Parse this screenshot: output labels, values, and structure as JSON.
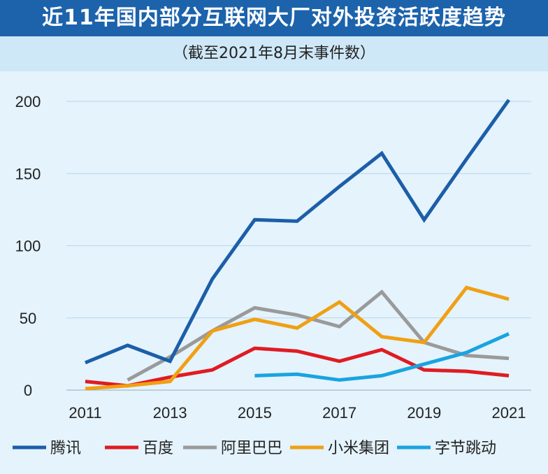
{
  "chart_data": {
    "type": "line",
    "title": "近11年国内部分互联网大厂对外投资活跃度趋势",
    "subtitle": "（截至2021年8月末事件数）",
    "x": [
      2011,
      2012,
      2013,
      2014,
      2015,
      2016,
      2017,
      2018,
      2019,
      2020,
      2021
    ],
    "xticks": [
      "2011",
      "2013",
      "2015",
      "2017",
      "2019",
      "2021"
    ],
    "yticks": [
      "0",
      "50",
      "100",
      "150",
      "200"
    ],
    "ylim": [
      0,
      200
    ],
    "grid": true,
    "legend_position": "bottom",
    "series": [
      {
        "name": "腾讯",
        "color": "#1c5ea8",
        "values": [
          19,
          31,
          20,
          77,
          118,
          117,
          141,
          164,
          118,
          160,
          201
        ]
      },
      {
        "name": "百度",
        "color": "#e01b22",
        "values": [
          6,
          3,
          9,
          14,
          29,
          27,
          20,
          28,
          14,
          13,
          10
        ]
      },
      {
        "name": "阿里巴巴",
        "color": "#9a9a9a",
        "values": [
          null,
          7,
          23,
          41,
          57,
          52,
          44,
          68,
          33,
          24,
          22
        ]
      },
      {
        "name": "小米集团",
        "color": "#f0a013",
        "values": [
          1,
          3,
          6,
          41,
          49,
          43,
          61,
          37,
          33,
          71,
          63
        ]
      },
      {
        "name": "字节跳动",
        "color": "#1aa3e0",
        "values": [
          null,
          null,
          null,
          null,
          10,
          11,
          7,
          10,
          18,
          26,
          39
        ]
      }
    ]
  }
}
